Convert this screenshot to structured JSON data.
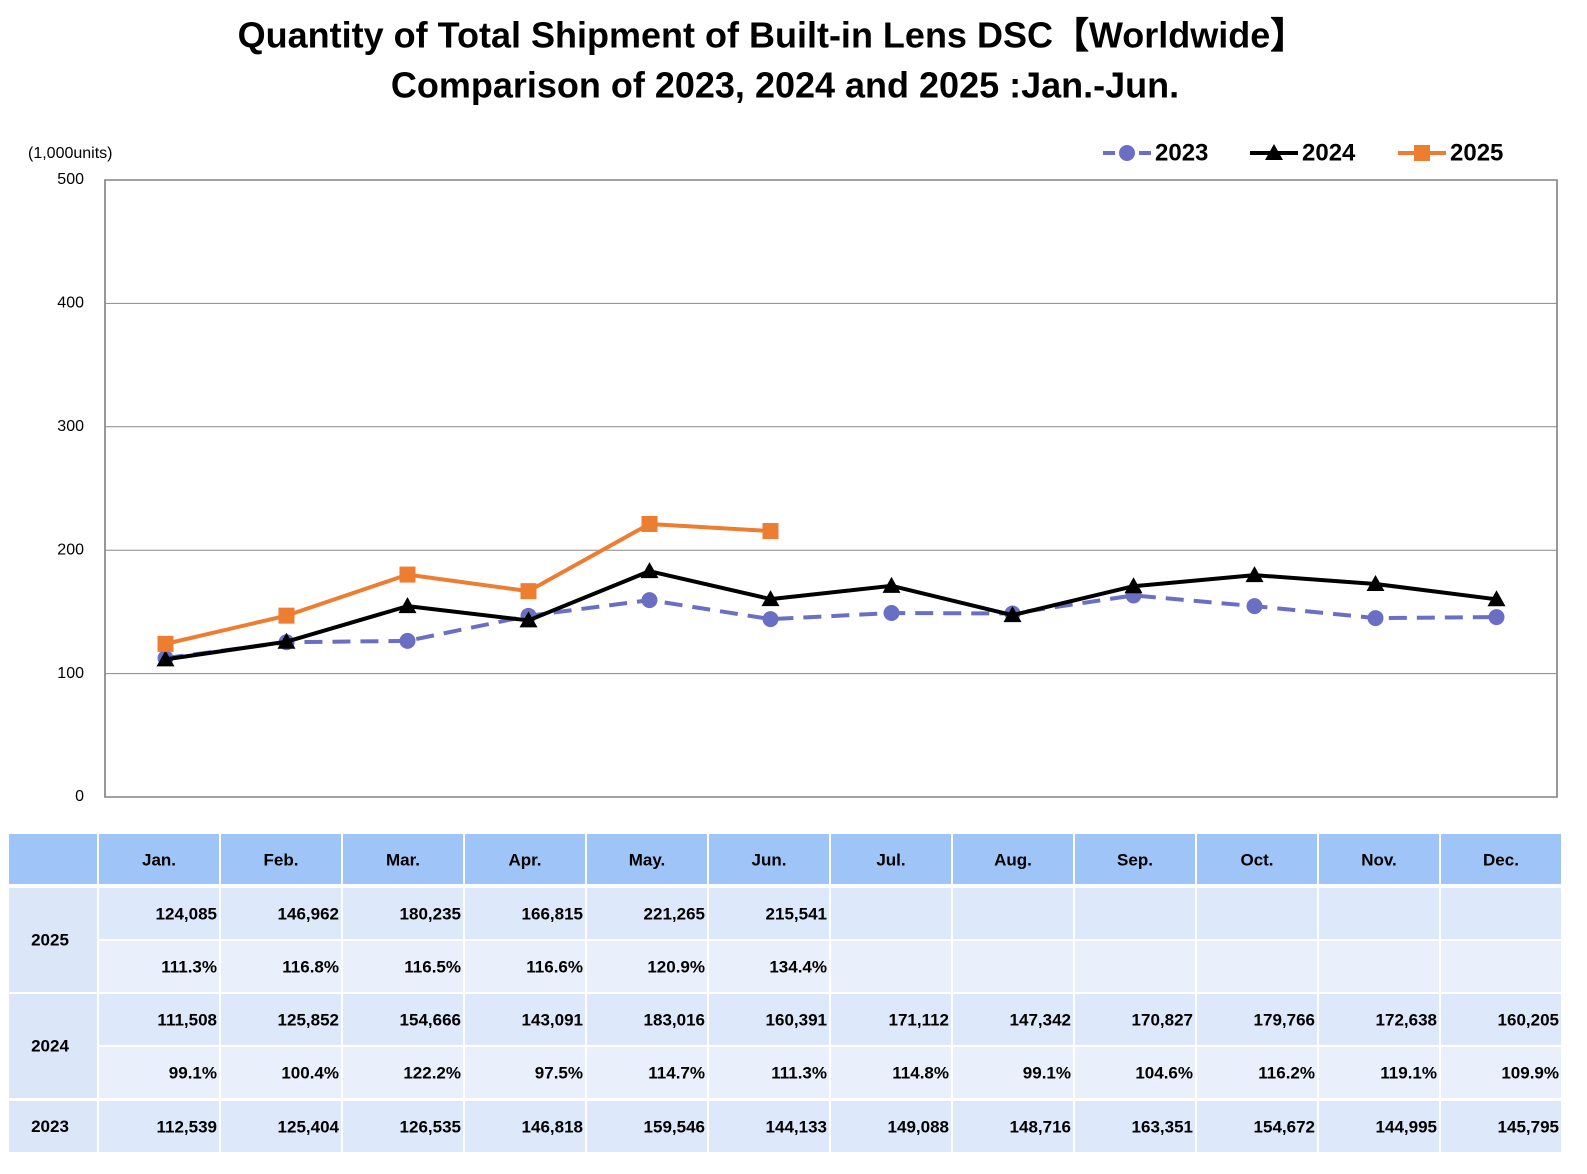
{
  "chart_data": {
    "type": "line",
    "title": "Quantity of Total Shipment of Built-in Lens DSC【Worldwide】",
    "subtitle": "Comparison of 2023, 2024 and 2025 :Jan.-Jun.",
    "y_label": "(1,000units)",
    "categories": [
      "Jan.",
      "Feb.",
      "Mar.",
      "Apr.",
      "May.",
      "Jun.",
      "Jul.",
      "Aug.",
      "Sep.",
      "Oct.",
      "Nov.",
      "Dec."
    ],
    "ylim": [
      0,
      500
    ],
    "yticks": [
      0,
      100,
      200,
      300,
      400,
      500
    ],
    "grid": true,
    "legend": "top-right",
    "series": [
      {
        "name": "2023",
        "color": "#6b6fc4",
        "marker": "circle",
        "dashed": true,
        "values": [
          112.539,
          125.404,
          126.535,
          146.818,
          159.546,
          144.133,
          149.088,
          148.716,
          163.351,
          154.672,
          144.995,
          145.795
        ],
        "value_labels": [
          "112,539",
          "125,404",
          "126,535",
          "146,818",
          "159,546",
          "144,133",
          "149,088",
          "148,716",
          "163,351",
          "154,672",
          "144,995",
          "145,795"
        ]
      },
      {
        "name": "2024",
        "color": "#000000",
        "marker": "triangle",
        "dashed": false,
        "values": [
          111.508,
          125.852,
          154.666,
          143.091,
          183.016,
          160.391,
          171.112,
          147.342,
          170.827,
          179.766,
          172.638,
          160.205
        ],
        "value_labels": [
          "111,508",
          "125,852",
          "154,666",
          "143,091",
          "183,016",
          "160,391",
          "171,112",
          "147,342",
          "170,827",
          "179,766",
          "172,638",
          "160,205"
        ],
        "ratio_labels": [
          "99.1%",
          "100.4%",
          "122.2%",
          "97.5%",
          "114.7%",
          "111.3%",
          "114.8%",
          "99.1%",
          "104.6%",
          "116.2%",
          "119.1%",
          "109.9%"
        ]
      },
      {
        "name": "2025",
        "color": "#ed7d31",
        "marker": "square",
        "dashed": false,
        "values": [
          124.085,
          146.962,
          180.235,
          166.815,
          221.265,
          215.541,
          null,
          null,
          null,
          null,
          null,
          null
        ],
        "value_labels": [
          "124,085",
          "146,962",
          "180,235",
          "166,815",
          "221,265",
          "215,541",
          null,
          null,
          null,
          null,
          null,
          null
        ],
        "ratio_labels": [
          "111.3%",
          "116.8%",
          "116.5%",
          "116.6%",
          "120.9%",
          "134.4%",
          null,
          null,
          null,
          null,
          null,
          null
        ]
      }
    ]
  }
}
